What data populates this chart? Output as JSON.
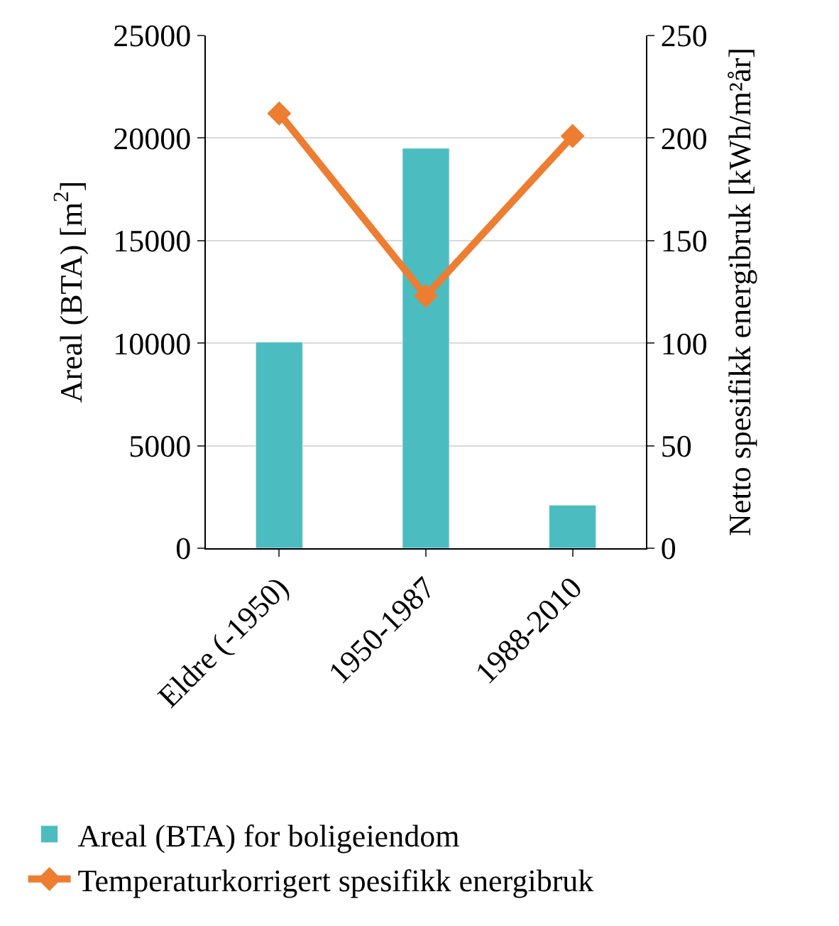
{
  "chart_data": {
    "type": "bar",
    "categories": [
      "Eldre (-1950)",
      "1950-1987",
      "1988-2010"
    ],
    "ylabel": "Areal (BTA) [m$^{2}$]",
    "y2label": "Netto spesifikk energibruk [kWh/m²år]",
    "ylim": [
      0,
      25000
    ],
    "yticks": [
      0,
      5000,
      10000,
      15000,
      20000,
      25000
    ],
    "y2lim": [
      0,
      250
    ],
    "y2ticks": [
      0,
      50,
      100,
      150,
      200,
      250
    ],
    "series": [
      {
        "name": "Areal (BTA) for boligeiendom",
        "color": "#4bbdc0",
        "values": [
          10050,
          19500,
          2100
        ]
      },
      {
        "name": "Temperaturkorrigert spesifikk energibruk",
        "color": "#ed7d31",
        "type": "line",
        "axis": "y2",
        "marker": "diamond",
        "values": [
          212,
          123,
          201
        ]
      }
    ],
    "grid": "y",
    "legend": "bottom"
  }
}
